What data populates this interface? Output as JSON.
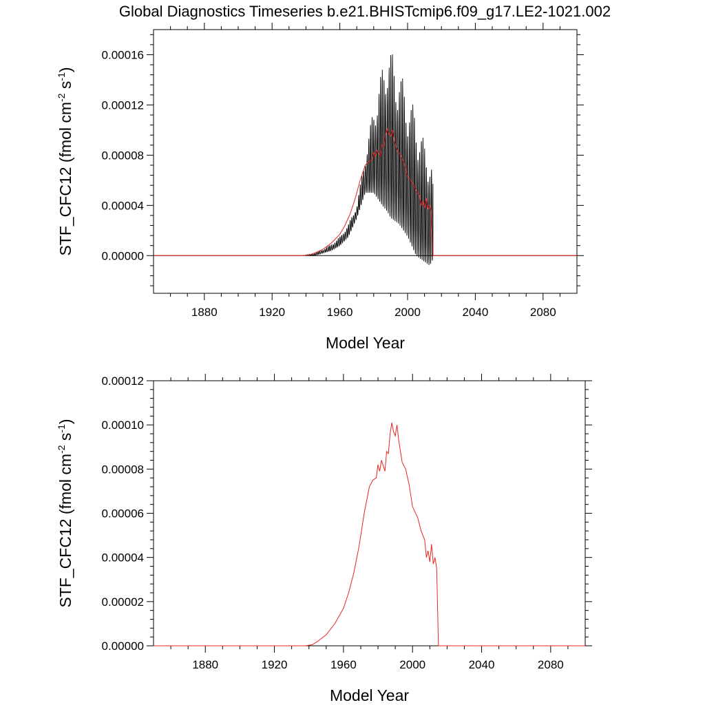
{
  "title": "Global Diagnostics Timeseries b.e21.BHISTcmip6.f09_g17.LE2-1021.002",
  "colors": {
    "monthly": "#000000",
    "annual": "#e8231f",
    "axis": "#000000",
    "background": "#ffffff"
  },
  "chart_data": [
    {
      "type": "line",
      "panel": "top",
      "xlabel": "Model Year",
      "ylabel": {
        "prefix": "STF_CFC12 (fmol cm",
        "sup1": "-2",
        "mid": " s",
        "sup2": "-1",
        "suffix": ")"
      },
      "xlim": [
        1850,
        2100
      ],
      "ylim": [
        -3e-05,
        0.00018
      ],
      "xticks": [
        1880,
        1920,
        1960,
        2000,
        2040,
        2080
      ],
      "yticks": [
        0,
        4e-05,
        8e-05,
        0.00012,
        0.00016
      ],
      "ytick_labels": [
        "0.00000",
        "0.00004",
        "0.00008",
        "0.00012",
        "0.00016"
      ],
      "zero_line": true,
      "monthly_envelope": {
        "description": "monthly values oscillating between upper and lower envelope",
        "years": [
          1938,
          1945,
          1950,
          1955,
          1960,
          1965,
          1970,
          1975,
          1980,
          1985,
          1988,
          1990,
          1995,
          2000,
          2005,
          2010,
          2013,
          2015
        ],
        "upper": [
          0.0,
          2e-06,
          5e-06,
          9e-06,
          1.5e-05,
          2.5e-05,
          4e-05,
          8e-05,
          0.00012,
          0.00015,
          0.00017,
          0.000165,
          0.00015,
          0.00013,
          0.000115,
          9e-05,
          8.5e-05,
          7e-05
        ],
        "lower": [
          0.0,
          0.0,
          2e-06,
          4e-06,
          8e-06,
          1.5e-05,
          3e-05,
          5e-05,
          5e-05,
          4e-05,
          3.5e-05,
          3e-05,
          2.5e-05,
          1.5e-05,
          0.0,
          -5e-06,
          -8e-06,
          -3e-06
        ]
      },
      "series": [
        {
          "name": "annual",
          "x": [
            1938,
            1942,
            1945,
            1950,
            1955,
            1960,
            1963,
            1966,
            1969,
            1972,
            1975,
            1977,
            1979,
            1980,
            1981,
            1982,
            1984,
            1985,
            1986,
            1987,
            1988,
            1989,
            1990,
            1991,
            1992,
            1994,
            1996,
            1998,
            2000,
            2003,
            2005,
            2007,
            2008,
            2009,
            2010,
            2011,
            2012,
            2013,
            2014,
            2015
          ],
          "values": [
            0.0,
            5e-07,
            2e-06,
            5e-06,
            1e-05,
            1.7e-05,
            2.4e-05,
            3.3e-05,
            4.5e-05,
            6e-05,
            7.2e-05,
            7.5e-05,
            7.6e-05,
            8.2e-05,
            7.9e-05,
            8.4e-05,
            7.9e-05,
            8.8e-05,
            8.7e-05,
            9.6e-05,
            0.000101,
            9.7e-05,
            9.5e-05,
            0.0001,
            9.3e-05,
            8.3e-05,
            8e-05,
            7.3e-05,
            6.3e-05,
            5.8e-05,
            5.2e-05,
            4.8e-05,
            4e-05,
            4.3e-05,
            3.8e-05,
            4.6e-05,
            3.7e-05,
            4e-05,
            3.5e-05,
            0.0
          ]
        }
      ]
    },
    {
      "type": "line",
      "panel": "bottom",
      "xlabel": "Model Year",
      "ylabel": {
        "prefix": "STF_CFC12 (fmol cm",
        "sup1": "-2",
        "mid": " s",
        "sup2": "-1",
        "suffix": ")"
      },
      "xlim": [
        1850,
        2100
      ],
      "ylim": [
        0,
        0.00012
      ],
      "xticks": [
        1880,
        1920,
        1960,
        2000,
        2040,
        2080
      ],
      "yticks": [
        0,
        2e-05,
        4e-05,
        6e-05,
        8e-05,
        0.0001,
        0.00012
      ],
      "ytick_labels": [
        "0.00000",
        "0.00002",
        "0.00004",
        "0.00006",
        "0.00008",
        "0.00010",
        "0.00012"
      ],
      "zero_line": false,
      "series": [
        {
          "name": "annual",
          "x": [
            1938,
            1942,
            1945,
            1950,
            1955,
            1960,
            1963,
            1966,
            1969,
            1972,
            1975,
            1977,
            1979,
            1980,
            1981,
            1982,
            1984,
            1985,
            1986,
            1987,
            1988,
            1989,
            1990,
            1991,
            1992,
            1994,
            1996,
            1998,
            2000,
            2003,
            2005,
            2007,
            2008,
            2009,
            2010,
            2011,
            2012,
            2013,
            2014,
            2015
          ],
          "values": [
            0.0,
            5e-07,
            2e-06,
            5e-06,
            1e-05,
            1.7e-05,
            2.4e-05,
            3.3e-05,
            4.5e-05,
            6e-05,
            7.2e-05,
            7.5e-05,
            7.6e-05,
            8.2e-05,
            7.9e-05,
            8.4e-05,
            7.9e-05,
            8.8e-05,
            8.7e-05,
            9.6e-05,
            0.000101,
            9.7e-05,
            9.5e-05,
            0.0001,
            9.3e-05,
            8.3e-05,
            8e-05,
            7.3e-05,
            6.3e-05,
            5.8e-05,
            5.2e-05,
            4.8e-05,
            4e-05,
            4.3e-05,
            3.8e-05,
            4.6e-05,
            3.7e-05,
            4e-05,
            3.5e-05,
            0.0
          ]
        }
      ]
    }
  ]
}
